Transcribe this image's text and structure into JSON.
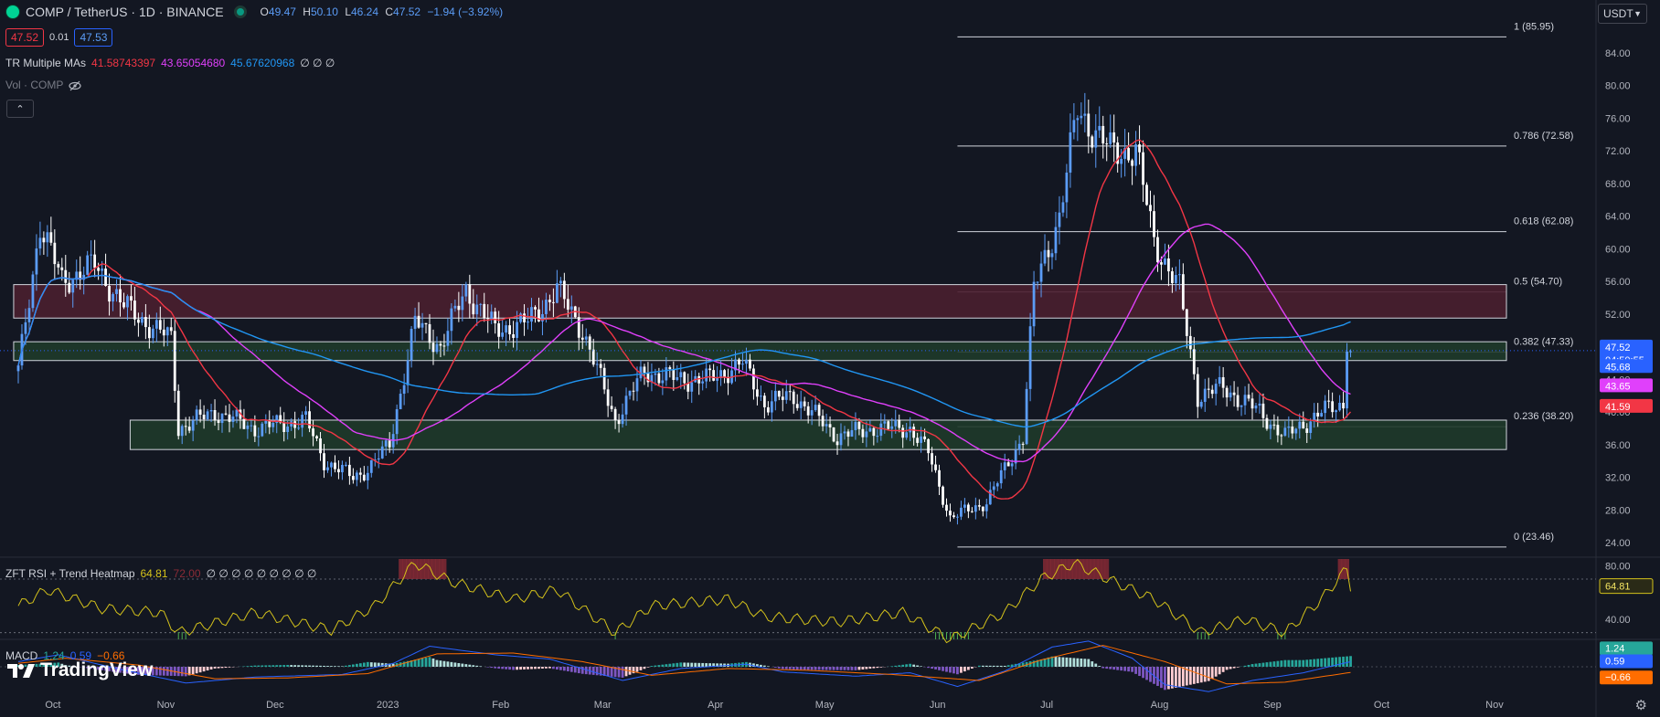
{
  "header": {
    "symbol": "COMP / TetherUS · 1D · BINANCE",
    "o_label": "O",
    "o_value": "49.47",
    "h_label": "H",
    "h_value": "50.10",
    "l_label": "L",
    "l_value": "46.24",
    "c_label": "C",
    "c_value": "47.52",
    "change": "−1.94 (−3.92%)",
    "bid": "47.52",
    "spread": "0.01",
    "ask": "47.53"
  },
  "indicators": {
    "mas_name": "TR Multiple MAs",
    "ma1": "41.58743397",
    "ma2": "43.65054680",
    "ma3": "45.67620968",
    "mas_tail": "∅ ∅ ∅",
    "vol_label": "Vol · COMP",
    "rsi_name": "ZFT RSI + Trend Heatmap",
    "rsi_value": "64.81",
    "rsi_value2": "72.00",
    "rsi_tail": "∅ ∅ ∅ ∅ ∅ ∅ ∅ ∅ ∅",
    "macd_name": "MACD",
    "macd_values": [
      "1.24",
      "0.59",
      "−0.66"
    ]
  },
  "currency": "USDT",
  "brand": "TradingView",
  "colors": {
    "up": "#5b9cf6",
    "down": "#ffffff",
    "ma_fast": "#f23645",
    "ma_mid": "#e040fb",
    "ma_slow": "#2196f3",
    "rsi": "#d4c21b",
    "macd": "#2962ff",
    "signal": "#ff6d00",
    "resistance_zone": "#4a1f2f",
    "support_zone": "#1f3a2a",
    "bg": "#131722"
  },
  "chart_data": [
    {
      "type": "candlestick",
      "title": "COMP / TetherUS · 1D · BINANCE",
      "ylim": [
        23,
        88
      ],
      "y_ticks": [
        "84.00",
        "80.00",
        "76.00",
        "72.00",
        "68.00",
        "64.00",
        "60.00",
        "56.00",
        "52.00",
        "48.00",
        "44.00",
        "40.00",
        "36.00",
        "32.00",
        "28.00",
        "24.00"
      ],
      "x_ticks": [
        "Oct",
        "Nov",
        "Dec",
        "2023",
        "Feb",
        "Mar",
        "Apr",
        "May",
        "Jun",
        "Jul",
        "Aug",
        "Sep",
        "Oct",
        "Nov"
      ],
      "price_path": [
        [
          "2022-09-27",
          45
        ],
        [
          "2022-10-03",
          63
        ],
        [
          "2022-10-09",
          56
        ],
        [
          "2022-10-18",
          58
        ],
        [
          "2022-10-26",
          53
        ],
        [
          "2022-11-04",
          50
        ],
        [
          "2022-11-08",
          49
        ],
        [
          "2022-11-10",
          38
        ],
        [
          "2022-11-20",
          40
        ],
        [
          "2022-12-01",
          38
        ],
        [
          "2022-12-15",
          39
        ],
        [
          "2022-12-20",
          34
        ],
        [
          "2022-12-28",
          32
        ],
        [
          "2023-01-01",
          33
        ],
        [
          "2023-01-07",
          36
        ],
        [
          "2023-01-14",
          51
        ],
        [
          "2023-01-21",
          48
        ],
        [
          "2023-01-28",
          55
        ],
        [
          "2023-02-05",
          50
        ],
        [
          "2023-02-14",
          51
        ],
        [
          "2023-02-22",
          55
        ],
        [
          "2023-03-01",
          50
        ],
        [
          "2023-03-10",
          39
        ],
        [
          "2023-03-18",
          45
        ],
        [
          "2023-03-27",
          44
        ],
        [
          "2023-04-05",
          44
        ],
        [
          "2023-04-14",
          46
        ],
        [
          "2023-04-20",
          41
        ],
        [
          "2023-04-28",
          42
        ],
        [
          "2023-05-10",
          37
        ],
        [
          "2023-05-20",
          38
        ],
        [
          "2023-05-30",
          38
        ],
        [
          "2023-06-04",
          35
        ],
        [
          "2023-06-10",
          27
        ],
        [
          "2023-06-20",
          29
        ],
        [
          "2023-06-30",
          37
        ],
        [
          "2023-07-03",
          55
        ],
        [
          "2023-07-10",
          64
        ],
        [
          "2023-07-15",
          77
        ],
        [
          "2023-07-24",
          72
        ],
        [
          "2023-07-31",
          72
        ],
        [
          "2023-08-05",
          61
        ],
        [
          "2023-08-12",
          55
        ],
        [
          "2023-08-17",
          42
        ],
        [
          "2023-08-24",
          43
        ],
        [
          "2023-09-03",
          40
        ],
        [
          "2023-09-10",
          37
        ],
        [
          "2023-09-20",
          40
        ],
        [
          "2023-09-26",
          41
        ],
        [
          "2023-09-27",
          49
        ],
        [
          "2023-09-28",
          47.52
        ]
      ],
      "annotations": [
        {
          "text": "47.52",
          "sub": "04:50:55"
        },
        {
          "text": "45.68"
        },
        {
          "text": "43.65"
        },
        {
          "text": "41.59"
        }
      ],
      "zones": [
        {
          "kind": "resistance",
          "from_date": "2022-09-30",
          "to_date": "2023-09-28",
          "y0": 51.5,
          "y1": 55.6
        },
        {
          "kind": "support",
          "from_date": "2022-09-30",
          "to_date": "2023-09-28",
          "y0": 46.3,
          "y1": 48.6
        },
        {
          "kind": "support",
          "from_date": "2022-11-01",
          "to_date": "2023-09-28",
          "y0": 35.4,
          "y1": 39.0
        }
      ],
      "fib_levels": [
        {
          "label": "1 (85.95)",
          "value": 85.95
        },
        {
          "label": "0.786 (72.58)",
          "value": 72.58
        },
        {
          "label": "0.618 (62.08)",
          "value": 62.08
        },
        {
          "label": "0.5 (54.70)",
          "value": 54.7
        },
        {
          "label": "0.382 (47.33)",
          "value": 47.33
        },
        {
          "label": "0.236 (38.20)",
          "value": 38.2
        },
        {
          "label": "0 (23.46)",
          "value": 23.46
        }
      ],
      "fib_start_date": "2023-06-12"
    },
    {
      "type": "line",
      "title": "ZFT RSI + Trend Heatmap",
      "ylim": [
        25,
        85
      ],
      "y_ticks": [
        "80.00",
        "40.00"
      ],
      "levels": [
        70,
        30
      ],
      "rsi_path": [
        [
          "2022-09-27",
          50
        ],
        [
          "2022-10-05",
          62
        ],
        [
          "2022-10-20",
          48
        ],
        [
          "2022-11-05",
          45
        ],
        [
          "2022-11-10",
          30
        ],
        [
          "2022-12-01",
          45
        ],
        [
          "2022-12-22",
          32
        ],
        [
          "2023-01-03",
          50
        ],
        [
          "2023-01-14",
          82
        ],
        [
          "2023-01-24",
          68
        ],
        [
          "2023-02-10",
          55
        ],
        [
          "2023-02-22",
          62
        ],
        [
          "2023-03-10",
          30
        ],
        [
          "2023-03-20",
          50
        ],
        [
          "2023-04-10",
          55
        ],
        [
          "2023-04-20",
          42
        ],
        [
          "2023-05-10",
          38
        ],
        [
          "2023-05-28",
          45
        ],
        [
          "2023-06-10",
          25
        ],
        [
          "2023-06-25",
          45
        ],
        [
          "2023-07-05",
          70
        ],
        [
          "2023-07-14",
          82
        ],
        [
          "2023-07-25",
          68
        ],
        [
          "2023-08-05",
          55
        ],
        [
          "2023-08-18",
          30
        ],
        [
          "2023-08-30",
          40
        ],
        [
          "2023-09-10",
          30
        ],
        [
          "2023-09-20",
          55
        ],
        [
          "2023-09-27",
          78
        ],
        [
          "2023-09-28",
          64.81
        ]
      ]
    },
    {
      "type": "bar",
      "title": "MACD",
      "ylim": [
        -3.2,
        3.2
      ],
      "y_ticks": [
        "1.24",
        "0.59",
        "−0.66"
      ],
      "macd_path": [
        [
          "2022-09-27",
          0.6
        ],
        [
          "2022-10-08",
          1.4
        ],
        [
          "2022-10-25",
          -0.3
        ],
        [
          "2022-11-12",
          -1.9
        ],
        [
          "2022-12-01",
          -1.2
        ],
        [
          "2022-12-25",
          -0.9
        ],
        [
          "2023-01-08",
          0.4
        ],
        [
          "2023-01-18",
          2.4
        ],
        [
          "2023-02-05",
          1.4
        ],
        [
          "2023-02-20",
          0.9
        ],
        [
          "2023-03-12",
          -1.6
        ],
        [
          "2023-03-28",
          -0.2
        ],
        [
          "2023-04-15",
          0.3
        ],
        [
          "2023-04-25",
          -0.6
        ],
        [
          "2023-05-15",
          -1.1
        ],
        [
          "2023-05-30",
          -0.7
        ],
        [
          "2023-06-12",
          -2.3
        ],
        [
          "2023-06-25",
          -0.5
        ],
        [
          "2023-07-08",
          2.3
        ],
        [
          "2023-07-18",
          3.0
        ],
        [
          "2023-07-30",
          1.0
        ],
        [
          "2023-08-08",
          -2.1
        ],
        [
          "2023-08-20",
          -2.9
        ],
        [
          "2023-09-01",
          -1.6
        ],
        [
          "2023-09-15",
          -0.7
        ],
        [
          "2023-09-24",
          0.2
        ],
        [
          "2023-09-28",
          0.59
        ]
      ],
      "signal_path": [
        [
          "2022-09-27",
          0.4
        ],
        [
          "2022-10-10",
          1.0
        ],
        [
          "2022-10-30",
          0.2
        ],
        [
          "2022-11-20",
          -1.4
        ],
        [
          "2022-12-10",
          -1.3
        ],
        [
          "2023-01-01",
          -0.8
        ],
        [
          "2023-01-20",
          1.5
        ],
        [
          "2023-02-10",
          1.6
        ],
        [
          "2023-03-01",
          0.6
        ],
        [
          "2023-03-20",
          -1.0
        ],
        [
          "2023-04-10",
          -0.2
        ],
        [
          "2023-05-01",
          -0.4
        ],
        [
          "2023-05-25",
          -0.9
        ],
        [
          "2023-06-18",
          -1.6
        ],
        [
          "2023-07-05",
          0.8
        ],
        [
          "2023-07-22",
          2.5
        ],
        [
          "2023-08-08",
          0.6
        ],
        [
          "2023-08-25",
          -2.0
        ],
        [
          "2023-09-10",
          -1.8
        ],
        [
          "2023-09-28",
          -0.66
        ]
      ]
    }
  ]
}
